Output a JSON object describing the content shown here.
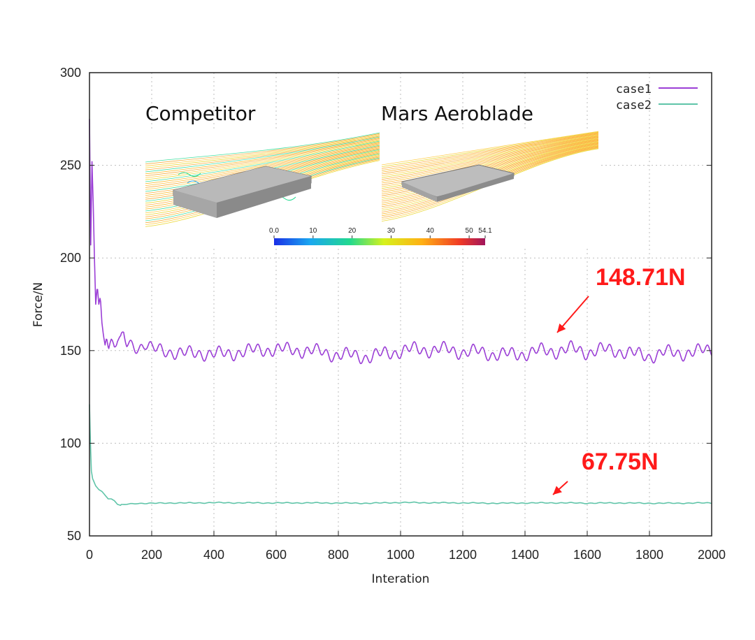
{
  "chart_data": {
    "type": "line",
    "xlabel": "Interation",
    "ylabel": "Force/N",
    "xlim": [
      0,
      2000
    ],
    "ylim": [
      50,
      300
    ],
    "xticks": [
      0,
      200,
      400,
      600,
      800,
      1000,
      1200,
      1400,
      1600,
      1800,
      2000
    ],
    "yticks": [
      50,
      100,
      150,
      200,
      250,
      300
    ],
    "grid": true,
    "legend": "top-right",
    "series": [
      {
        "name": "case1",
        "color": "#9b3fd6",
        "x": [
          0,
          4,
          8,
          12,
          16,
          20,
          25,
          30,
          35,
          40,
          45,
          50,
          55,
          60,
          70,
          80,
          90,
          100,
          110,
          120,
          140,
          160,
          180,
          200,
          250,
          300,
          350,
          400,
          450,
          500,
          550,
          600,
          650,
          700,
          750,
          800,
          850,
          900,
          950,
          1000,
          1050,
          1100,
          1150,
          1200,
          1250,
          1300,
          1350,
          1400,
          1450,
          1500,
          1550,
          1600,
          1650,
          1700,
          1750,
          1800,
          1850,
          1900,
          1950,
          2000
        ],
        "values": [
          275,
          207,
          252,
          230,
          200,
          175,
          185,
          175,
          179,
          165,
          158,
          153,
          157,
          152,
          154,
          152,
          155,
          153,
          157,
          152,
          152,
          151,
          153,
          150,
          150,
          149,
          150,
          149,
          149,
          149,
          150,
          149,
          150,
          149,
          150,
          148,
          149,
          147,
          149,
          149,
          150,
          149,
          150,
          149,
          150,
          149,
          149,
          149,
          150,
          149,
          150,
          148,
          150,
          150,
          149,
          148,
          150,
          149,
          149,
          150
        ]
      },
      {
        "name": "case2",
        "color": "#5fc4a8",
        "x": [
          0,
          3,
          6,
          10,
          15,
          20,
          30,
          40,
          50,
          60,
          70,
          80,
          90,
          100,
          120,
          150,
          200,
          250,
          300,
          400,
          500,
          600,
          700,
          800,
          900,
          1000,
          1100,
          1200,
          1300,
          1400,
          1500,
          1600,
          1700,
          1800,
          1900,
          2000
        ],
        "values": [
          121,
          100,
          85,
          81,
          79,
          77,
          75,
          74,
          72,
          70,
          70,
          69,
          67,
          66.5,
          67,
          67.5,
          67.5,
          67.8,
          67.8,
          68,
          67.8,
          67.7,
          67.8,
          67.8,
          67.7,
          68,
          67.8,
          67.8,
          67.7,
          67.8,
          67.8,
          67.6,
          67.8,
          67.7,
          67.7,
          67.75
        ]
      }
    ],
    "annotations": [
      {
        "text": "148.71N",
        "x": 1480,
        "y": 154,
        "color": "#ff1a1a"
      },
      {
        "text": "67.75N",
        "x": 1480,
        "y": 70,
        "color": "#ff1a1a"
      }
    ]
  },
  "inset": {
    "competitor_label": "Competitor",
    "product_label": "Mars Aeroblade",
    "colorbar_ticks": [
      "0.0",
      "10",
      "20",
      "30",
      "40",
      "50",
      "54.1"
    ],
    "colorbar_values": [
      0,
      10,
      20,
      30,
      40,
      50,
      54.1
    ],
    "colorbar_range": [
      0,
      54.1
    ],
    "colorbar_colors": [
      "#1a2fe6",
      "#1aa7f0",
      "#22d98e",
      "#d6f21c",
      "#ffb014",
      "#f03a25",
      "#a0155c"
    ]
  }
}
